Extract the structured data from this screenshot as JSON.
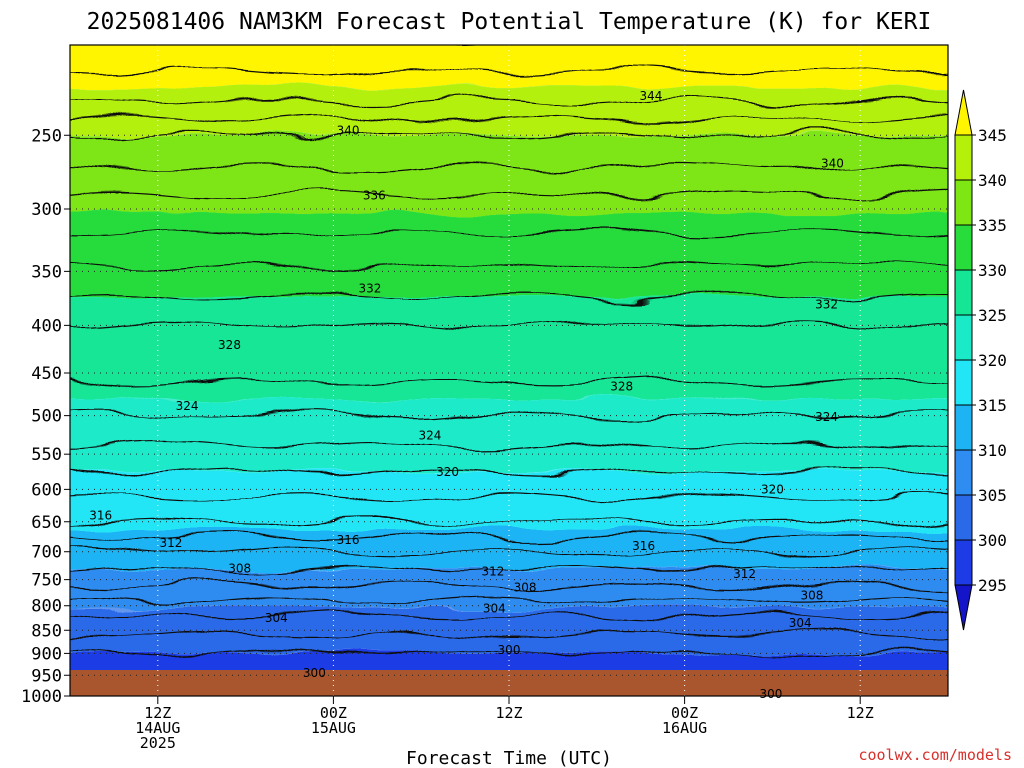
{
  "chart_data": {
    "type": "heatmap",
    "title": "2025081406 NAM3KM Forecast Potential Temperature (K) for KERI",
    "xlabel": "Forecast Time (UTC)",
    "ylabel": "",
    "y_axis": {
      "unit": "hPa",
      "scale": "log",
      "inverted": true,
      "range": [
        1000,
        200
      ],
      "ticks": [
        250,
        300,
        350,
        400,
        450,
        500,
        550,
        600,
        650,
        700,
        750,
        800,
        850,
        900,
        950,
        1000
      ]
    },
    "x_axis": {
      "unit": "forecast hour",
      "range": [
        6,
        66
      ],
      "ticks": [
        {
          "hour": 12,
          "lines": [
            "12Z",
            "14AUG",
            "2025"
          ]
        },
        {
          "hour": 24,
          "lines": [
            "00Z",
            "15AUG"
          ]
        },
        {
          "hour": 36,
          "lines": [
            "12Z"
          ]
        },
        {
          "hour": 48,
          "lines": [
            "00Z",
            "16AUG"
          ]
        },
        {
          "hour": 60,
          "lines": [
            "12Z"
          ]
        }
      ]
    },
    "grid": "dotted",
    "colorbar": {
      "placement": "right",
      "levels": [
        295,
        300,
        305,
        310,
        315,
        320,
        325,
        330,
        335,
        340,
        345
      ],
      "tick_labels": [
        "295",
        "300",
        "305",
        "310",
        "315",
        "320",
        "325",
        "330",
        "335",
        "340",
        "345"
      ],
      "colors": [
        "#1414c8",
        "#1e3ce6",
        "#2a6ae8",
        "#2f8cf0",
        "#1eb4f4",
        "#22e6f5",
        "#1aeac8",
        "#14e696",
        "#28dc3c",
        "#7ee612",
        "#b4f00a",
        "#fff500"
      ]
    },
    "contour_interval_K": 2,
    "contour_labels": [
      {
        "value": "344",
        "hour": 45.7,
        "p": 227
      },
      {
        "value": "340",
        "hour": 25.0,
        "p": 247
      },
      {
        "value": "340",
        "hour": 58.1,
        "p": 268
      },
      {
        "value": "336",
        "hour": 26.8,
        "p": 290
      },
      {
        "value": "332",
        "hour": 26.5,
        "p": 365
      },
      {
        "value": "332",
        "hour": 57.7,
        "p": 380
      },
      {
        "value": "328",
        "hour": 16.9,
        "p": 420
      },
      {
        "value": "328",
        "hour": 43.7,
        "p": 465
      },
      {
        "value": "324",
        "hour": 14.0,
        "p": 488
      },
      {
        "value": "324",
        "hour": 30.6,
        "p": 525
      },
      {
        "value": "324",
        "hour": 57.7,
        "p": 502
      },
      {
        "value": "320",
        "hour": 31.8,
        "p": 575
      },
      {
        "value": "320",
        "hour": 54.0,
        "p": 600
      },
      {
        "value": "316",
        "hour": 8.1,
        "p": 640
      },
      {
        "value": "316",
        "hour": 25.0,
        "p": 680
      },
      {
        "value": "316",
        "hour": 45.2,
        "p": 690
      },
      {
        "value": "312",
        "hour": 12.9,
        "p": 685
      },
      {
        "value": "312",
        "hour": 34.9,
        "p": 735
      },
      {
        "value": "312",
        "hour": 52.1,
        "p": 740
      },
      {
        "value": "308",
        "hour": 17.6,
        "p": 730
      },
      {
        "value": "308",
        "hour": 37.1,
        "p": 765
      },
      {
        "value": "308",
        "hour": 56.7,
        "p": 780
      },
      {
        "value": "304",
        "hour": 20.1,
        "p": 825
      },
      {
        "value": "304",
        "hour": 35.0,
        "p": 805
      },
      {
        "value": "304",
        "hour": 55.9,
        "p": 835
      },
      {
        "value": "300",
        "hour": 22.7,
        "p": 945
      },
      {
        "value": "300",
        "hour": 36.0,
        "p": 893
      },
      {
        "value": "300",
        "hour": 53.9,
        "p": 995
      }
    ],
    "surface_fill": "#a9552d"
  },
  "credit": "coolwx.com/models"
}
